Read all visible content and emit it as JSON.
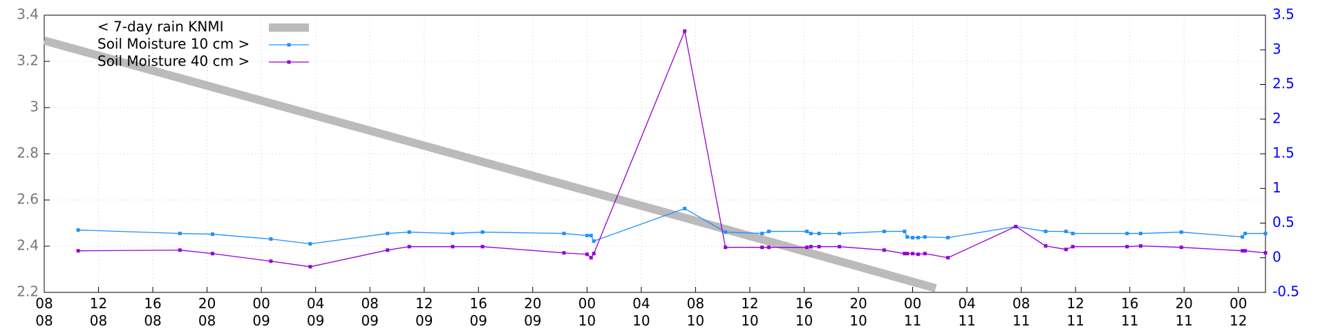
{
  "chart_data": {
    "type": "line",
    "xlim": [
      0,
      90
    ],
    "xticks": [
      {
        "value": 0,
        "label": "08\n08"
      },
      {
        "value": 4,
        "label": "12\n08"
      },
      {
        "value": 8,
        "label": "16\n08"
      },
      {
        "value": 12,
        "label": "20\n08"
      },
      {
        "value": 16,
        "label": "00\n09"
      },
      {
        "value": 20,
        "label": "04\n09"
      },
      {
        "value": 24,
        "label": "08\n09"
      },
      {
        "value": 28,
        "label": "12\n09"
      },
      {
        "value": 32,
        "label": "16\n09"
      },
      {
        "value": 36,
        "label": "20\n09"
      },
      {
        "value": 40,
        "label": "00\n10"
      },
      {
        "value": 44,
        "label": "04\n10"
      },
      {
        "value": 48,
        "label": "08\n10"
      },
      {
        "value": 52,
        "label": "12\n10"
      },
      {
        "value": 56,
        "label": "16\n10"
      },
      {
        "value": 60,
        "label": "20\n10"
      },
      {
        "value": 64,
        "label": "00\n11"
      },
      {
        "value": 68,
        "label": "04\n11"
      },
      {
        "value": 72,
        "label": "08\n11"
      },
      {
        "value": 76,
        "label": "12\n11"
      },
      {
        "value": 80,
        "label": "16\n11"
      },
      {
        "value": 84,
        "label": "20\n11"
      },
      {
        "value": 88,
        "label": "00\n12"
      }
    ],
    "ylim": [
      2.2,
      3.4
    ],
    "yticks": [
      2.2,
      2.4,
      2.6,
      2.8,
      3,
      3.2,
      3.4
    ],
    "y2lim": [
      -0.5,
      3.5
    ],
    "y2ticks": [
      -0.5,
      0,
      0.5,
      1,
      1.5,
      2,
      2.5,
      3,
      3.5
    ],
    "grid": true,
    "legend": "upper left",
    "series": [
      {
        "name": "< 7-day rain KNMI",
        "color": "#bbbbbb",
        "x": [
          0,
          16,
          32,
          48,
          65.7
        ],
        "values": [
          3.29,
          3.03,
          2.77,
          2.51,
          2.218
        ]
      },
      {
        "name": "Soil Moisture 10 cm >",
        "color": "#1e90ff",
        "axis": "y2",
        "x": [
          2.5,
          10,
          12.4,
          16.7,
          19.6,
          25.3,
          26.9,
          30.1,
          32.3,
          38.3,
          40,
          40.3,
          40.5,
          47.2,
          50.2,
          52.9,
          53.4,
          56.2,
          56.5,
          57.1,
          58.6,
          61.9,
          63.4,
          63.6,
          64,
          64.4,
          64.9,
          66.6,
          71.6,
          73.8,
          75.3,
          75.8,
          79.8,
          80.8,
          83.8,
          88.3,
          88.5,
          90
        ],
        "values": [
          0.4,
          0.35,
          0.34,
          0.27,
          0.2,
          0.35,
          0.37,
          0.35,
          0.37,
          0.35,
          0.32,
          0.32,
          0.24,
          0.71,
          0.37,
          0.35,
          0.38,
          0.38,
          0.35,
          0.35,
          0.35,
          0.38,
          0.38,
          0.3,
          0.29,
          0.29,
          0.3,
          0.29,
          0.45,
          0.38,
          0.38,
          0.35,
          0.35,
          0.35,
          0.37,
          0.3,
          0.35,
          0.35
        ]
      },
      {
        "name": "Soil Moisture 40 cm >",
        "color": "#9400d3",
        "axis": "y2",
        "x": [
          2.5,
          10,
          12.4,
          16.7,
          19.6,
          25.3,
          26.9,
          30.1,
          32.3,
          38.3,
          40,
          40.3,
          40.5,
          47.2,
          50.2,
          52.9,
          53.4,
          56.2,
          56.5,
          57.1,
          58.6,
          61.9,
          63.4,
          63.6,
          64,
          64.4,
          64.9,
          66.6,
          71.6,
          73.8,
          75.3,
          75.8,
          79.8,
          80.8,
          83.8,
          88.3,
          88.5,
          90
        ],
        "values": [
          0.1,
          0.11,
          0.06,
          -0.05,
          -0.13,
          0.11,
          0.16,
          0.16,
          0.16,
          0.07,
          0.05,
          0.0,
          0.06,
          3.27,
          0.15,
          0.15,
          0.15,
          0.15,
          0.16,
          0.16,
          0.16,
          0.11,
          0.06,
          0.06,
          0.06,
          0.05,
          0.06,
          0.0,
          0.45,
          0.17,
          0.12,
          0.16,
          0.16,
          0.17,
          0.15,
          0.1,
          0.1,
          0.07
        ]
      }
    ]
  }
}
